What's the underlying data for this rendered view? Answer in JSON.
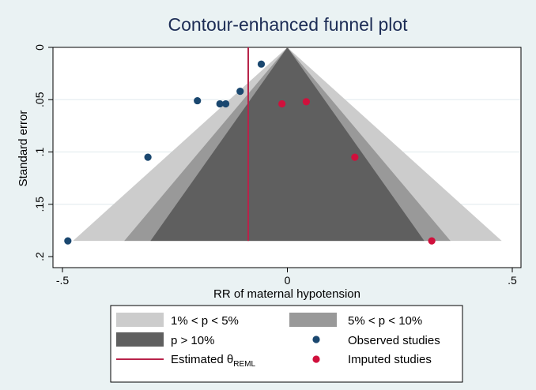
{
  "chart_data": {
    "type": "scatter",
    "title": "Contour-enhanced funnel plot",
    "xlabel": "RR of maternal hypotension",
    "ylabel": "Standard error",
    "xlim": [
      -0.5,
      0.5
    ],
    "ylim": [
      0.2,
      0
    ],
    "y_axis_inverted": true,
    "grid": "horizontal",
    "xticks": [
      {
        "value": -0.5,
        "label": "-.5"
      },
      {
        "value": 0,
        "label": "0"
      },
      {
        "value": 0.5,
        "label": ".5"
      }
    ],
    "yticks": [
      {
        "value": 0,
        "label": "0"
      },
      {
        "value": 0.05,
        "label": ".05"
      },
      {
        "value": 0.1,
        "label": ".1"
      },
      {
        "value": 0.15,
        "label": ".15"
      },
      {
        "value": 0.2,
        "label": ".2"
      }
    ],
    "funnel_max_se": 0.185,
    "contours": [
      {
        "name": "1% < p < 5%",
        "z": 2.576,
        "color": "#cccccc"
      },
      {
        "name": "5% < p < 10%",
        "z": 1.96,
        "color": "#999999"
      },
      {
        "name": "p > 10%",
        "z": 1.645,
        "color": "#5f5f5f"
      }
    ],
    "estimate": {
      "name": "Estimated θREML",
      "label_main": "Estimated θ",
      "label_sub": "REML",
      "value": -0.087,
      "color": "#b8234a"
    },
    "series": [
      {
        "name": "Observed studies",
        "color": "#1a476f",
        "points": [
          {
            "x": -0.058,
            "y": 0.016
          },
          {
            "x": -0.105,
            "y": 0.042
          },
          {
            "x": -0.2,
            "y": 0.051
          },
          {
            "x": -0.15,
            "y": 0.054
          },
          {
            "x": -0.137,
            "y": 0.054
          },
          {
            "x": -0.31,
            "y": 0.105
          },
          {
            "x": -0.488,
            "y": 0.185
          }
        ]
      },
      {
        "name": "Imputed studies",
        "color": "#d0103c",
        "points": [
          {
            "x": -0.012,
            "y": 0.054
          },
          {
            "x": 0.042,
            "y": 0.052
          },
          {
            "x": 0.15,
            "y": 0.105
          },
          {
            "x": 0.321,
            "y": 0.185
          }
        ]
      }
    ],
    "legend_position": "bottom"
  }
}
